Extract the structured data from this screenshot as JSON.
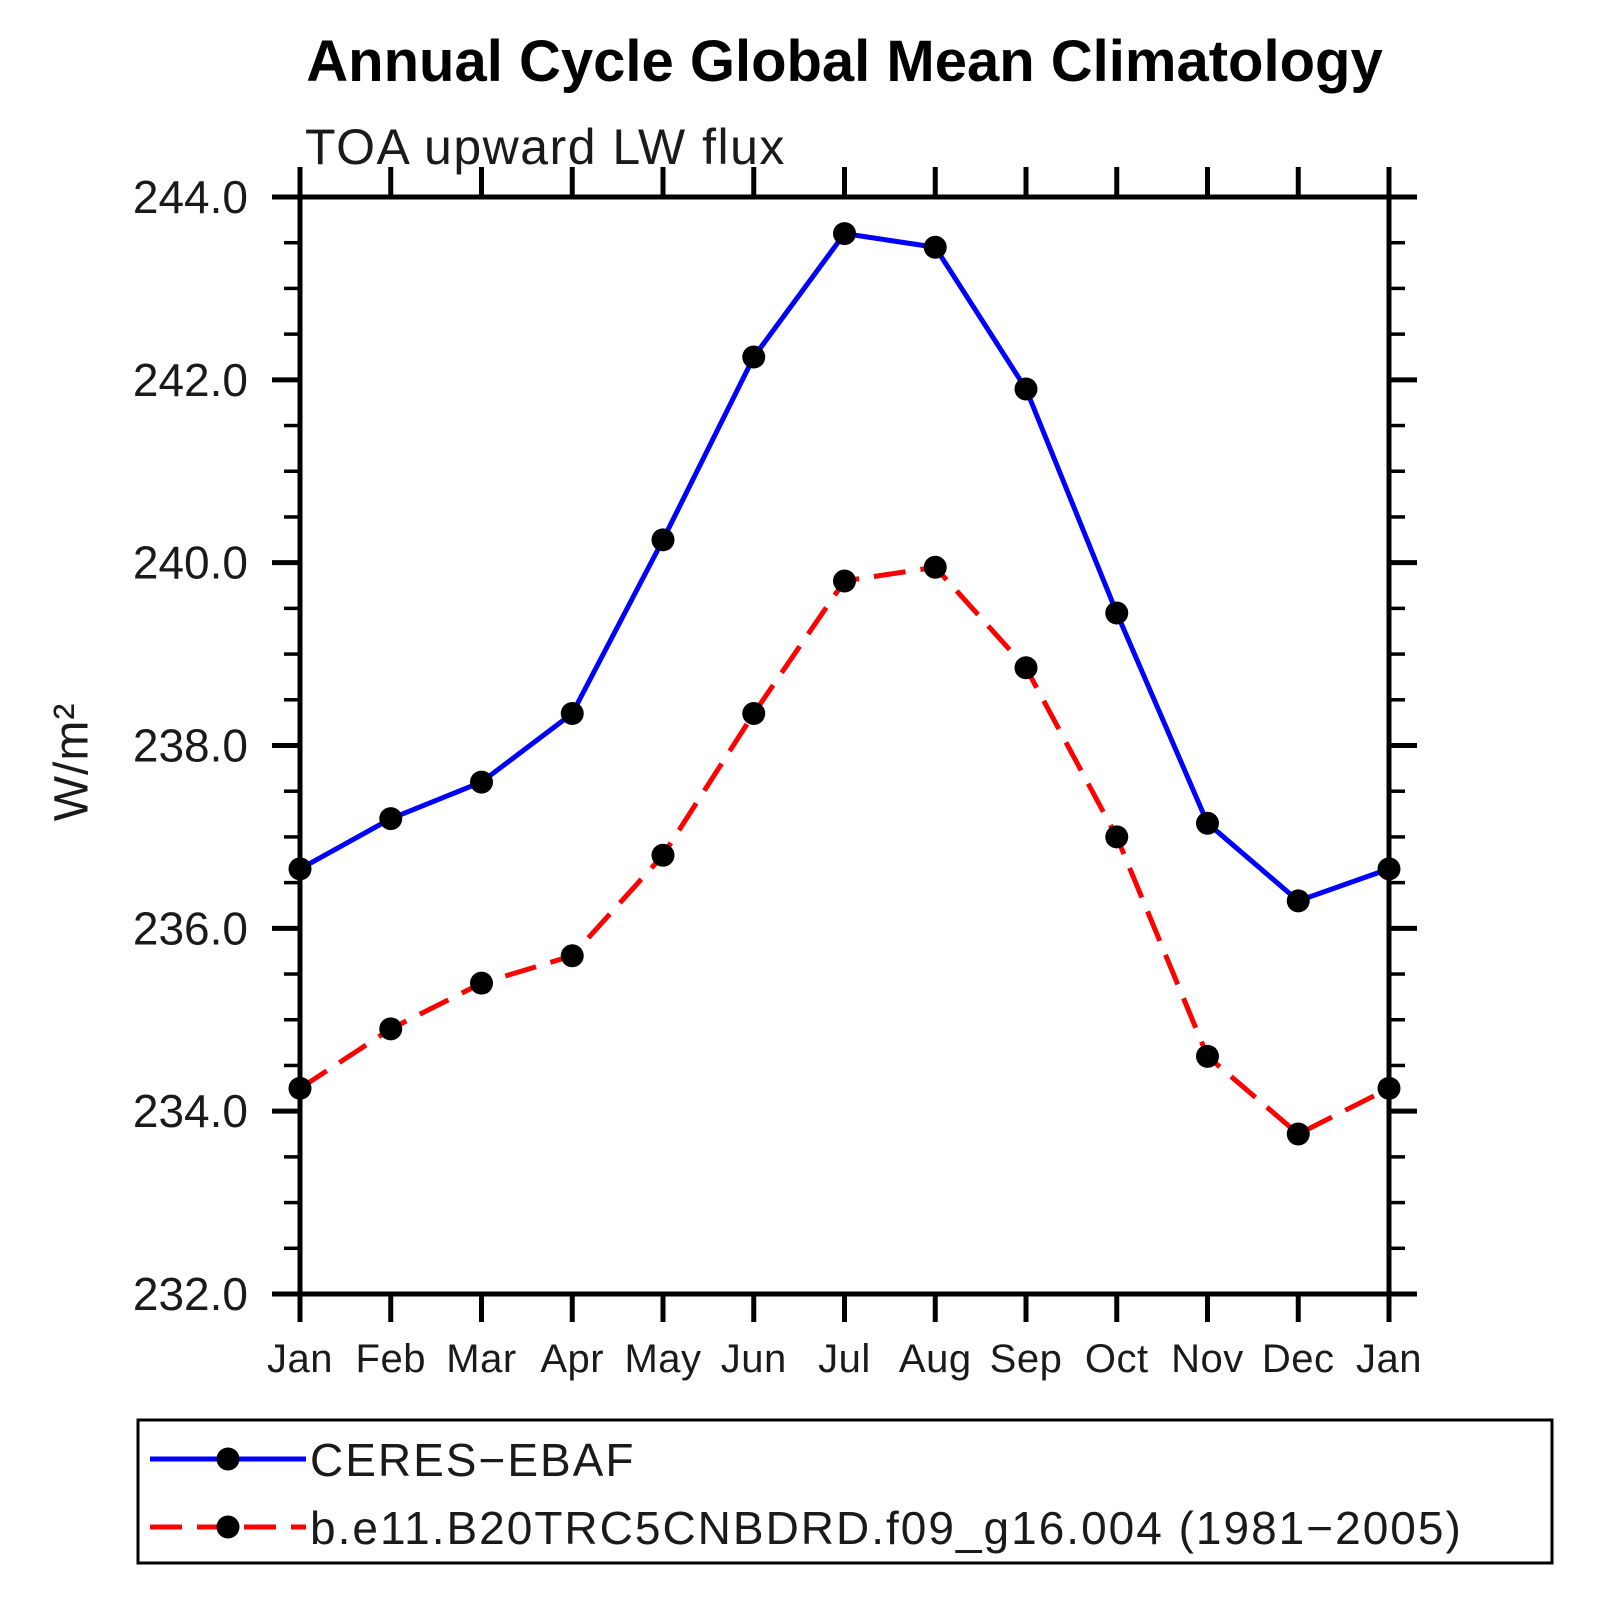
{
  "chart": {
    "title": "Annual Cycle Global Mean Climatology",
    "subtitle": "TOA upward LW flux",
    "ylabel": "W/m²"
  },
  "chart_data": {
    "type": "line",
    "title": "Annual Cycle Global Mean Climatology",
    "subtitle": "TOA upward LW flux",
    "xlabel": "",
    "ylabel": "W/m²",
    "x_categories": [
      "Jan",
      "Feb",
      "Mar",
      "Apr",
      "May",
      "Jun",
      "Jul",
      "Aug",
      "Sep",
      "Oct",
      "Nov",
      "Dec",
      "Jan"
    ],
    "ylim": [
      232.0,
      244.0
    ],
    "ytick_step": 2.0,
    "ytick_minor_step": 0.5,
    "ytick_labels": [
      "232.0",
      "234.0",
      "236.0",
      "238.0",
      "240.0",
      "242.0",
      "244.0"
    ],
    "grid": false,
    "legend_position": "bottom",
    "axis_color": "#000000",
    "series": [
      {
        "name": "CERES−EBAF",
        "line_color": "#0000ff",
        "line_style": "solid",
        "marker": "filled-circle",
        "marker_color": "#000000",
        "values": [
          236.65,
          237.2,
          237.6,
          238.35,
          240.25,
          242.25,
          243.6,
          243.45,
          241.9,
          239.45,
          237.15,
          236.3,
          236.65
        ]
      },
      {
        "name": "b.e11.B20TRC5CNBDRD.f09_g16.004 (1981−2005)",
        "line_color": "#ff0000",
        "line_style": "dashed",
        "marker": "filled-circle",
        "marker_color": "#000000",
        "values": [
          234.25,
          234.9,
          235.4,
          235.7,
          236.8,
          238.35,
          239.8,
          239.95,
          238.85,
          237.0,
          234.6,
          233.75,
          234.25
        ]
      }
    ]
  }
}
